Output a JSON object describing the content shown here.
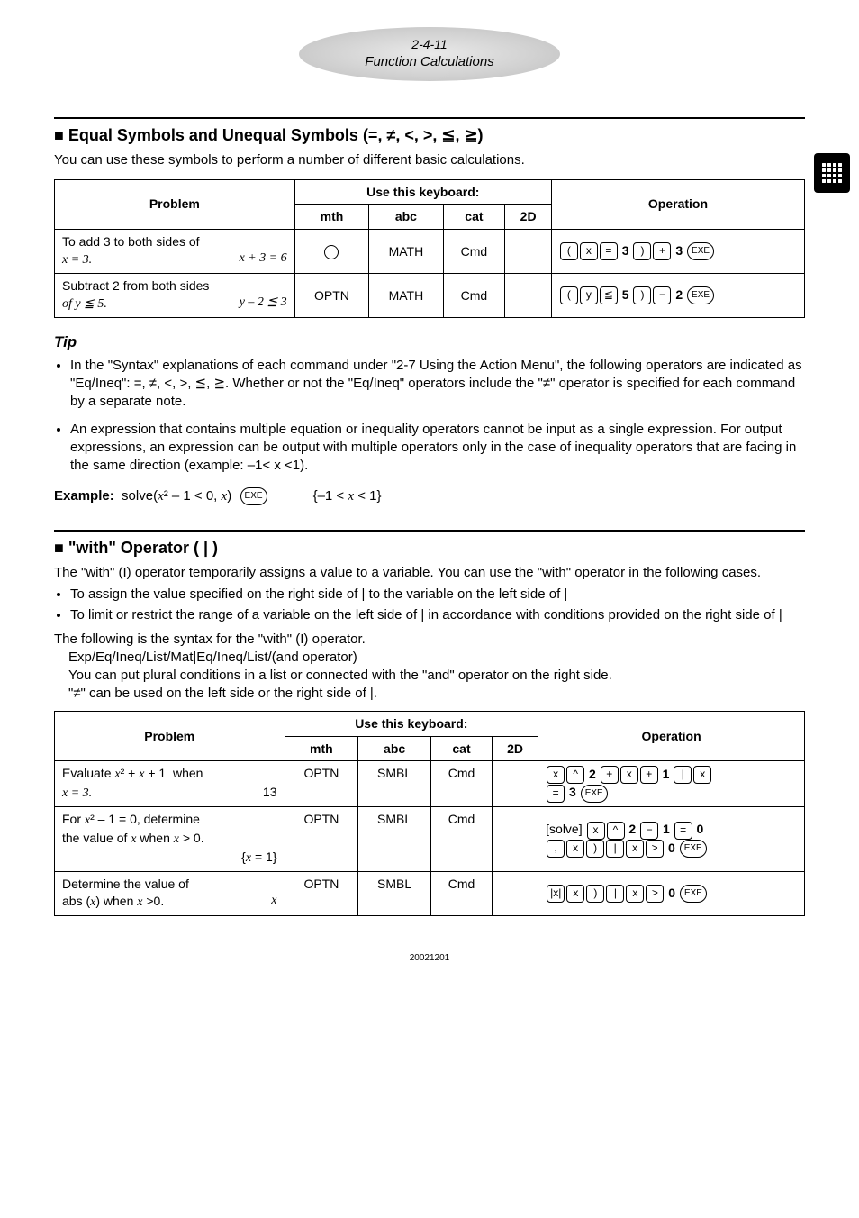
{
  "header": {
    "section_num": "2-4-11",
    "section_title": "Function Calculations"
  },
  "section1": {
    "title_prefix": "■ Equal Symbols and Unequal Symbols (=, ≠, <, >, ≦, ≧)",
    "intro": "You can use these symbols to perform a number of different basic calculations.",
    "table": {
      "head_problem": "Problem",
      "head_keyboard": "Use this keyboard:",
      "head_operation": "Operation",
      "cols": [
        "mth",
        "abc",
        "cat",
        "2D"
      ],
      "rows": [
        {
          "problem_main": "To add 3 to both sides of",
          "problem_sub_left": "x = 3.",
          "problem_sub_right": "x + 3 = 6",
          "mth": "○",
          "abc": "MATH",
          "cat": "Cmd",
          "twoD": "",
          "op_keys": [
            "(",
            "x",
            "=",
            "3",
            ")",
            "+",
            "3",
            "EXE"
          ]
        },
        {
          "problem_main": "Subtract 2 from both sides",
          "problem_sub_left": "of y ≦ 5.",
          "problem_sub_right": "y – 2 ≦ 3",
          "mth": "OPTN",
          "abc": "MATH",
          "cat": "Cmd",
          "twoD": "",
          "op_keys": [
            "(",
            "y",
            "≦",
            "5",
            ")",
            "−",
            "2",
            "EXE"
          ]
        }
      ]
    }
  },
  "tip": {
    "heading": "Tip",
    "items": [
      "In the \"Syntax\" explanations of each command under \"2-7 Using the Action Menu\", the following operators are indicated as \"Eq/Ineq\": =, ≠, <, >, ≦, ≧. Whether or not the \"Eq/Ineq\" operators include the \"≠\" operator is specified for each command by a separate note.",
      "An expression that contains multiple equation or inequality operators cannot be input as a single expression. For output expressions, an expression can be output with multiple operators only in the case of inequality operators that are facing in the same direction (example: –1< x <1)."
    ]
  },
  "example": {
    "label": "Example:",
    "expr": "solve(x² – 1 < 0, x)",
    "key": "EXE",
    "result": "{–1 < x < 1}"
  },
  "section2": {
    "title": "■ \"with\" Operator ( | )",
    "p1": "The \"with\" (I) operator temporarily assigns a value to a variable. You can use the \"with\" operator in the following cases.",
    "bullets": [
      "To assign the value specified on the right side of | to the variable on the left side of |",
      "To limit or restrict the range of a variable on the left side of | in accordance with conditions provided on the right side of |"
    ],
    "p2": "The following is the syntax for the \"with\" (I) operator.",
    "syntax": "Exp/Eq/Ineq/List/Mat|Eq/Ineq/List/(and operator)",
    "p3a": "You can put plural conditions in a list or connected with the \"and\" operator on the right side.",
    "p3b": "\"≠\" can be used on the left side or the right side of |.",
    "table": {
      "head_problem": "Problem",
      "head_keyboard": "Use this keyboard:",
      "head_operation": "Operation",
      "cols": [
        "mth",
        "abc",
        "cat",
        "2D"
      ],
      "rows": [
        {
          "problem_l1": "Evaluate x² + x + 1  when",
          "problem_l2_left": "x = 3.",
          "problem_l2_right": "13",
          "mth": "OPTN",
          "abc": "SMBL",
          "cat": "Cmd",
          "twoD": "",
          "op_lines": [
            [
              "x",
              "^",
              "2",
              "+",
              "x",
              "+",
              "1",
              "|",
              "x"
            ],
            [
              "=",
              "3",
              "EXE"
            ]
          ]
        },
        {
          "problem_l1": "For x² – 1 = 0, determine",
          "problem_l2": "the value of x when x > 0.",
          "problem_l3_right": "{x = 1}",
          "mth": "OPTN",
          "abc": "SMBL",
          "cat": "Cmd",
          "twoD": "",
          "op_lines": [
            [
              "[solve]",
              "x",
              "^",
              "2",
              "−",
              "1",
              "=",
              "0"
            ],
            [
              ",",
              "x",
              ")",
              "|",
              "x",
              ">",
              "0",
              "EXE"
            ]
          ]
        },
        {
          "problem_l1": "Determine the value of",
          "problem_l2_left": "abs (x) when x >0.",
          "problem_l2_right": "x",
          "mth": "OPTN",
          "abc": "SMBL",
          "cat": "Cmd",
          "twoD": "",
          "op_lines": [
            [
              "|x|",
              "x",
              ")",
              "|",
              "x",
              ">",
              "0",
              "EXE"
            ]
          ]
        }
      ]
    }
  },
  "footer_date": "20021201"
}
